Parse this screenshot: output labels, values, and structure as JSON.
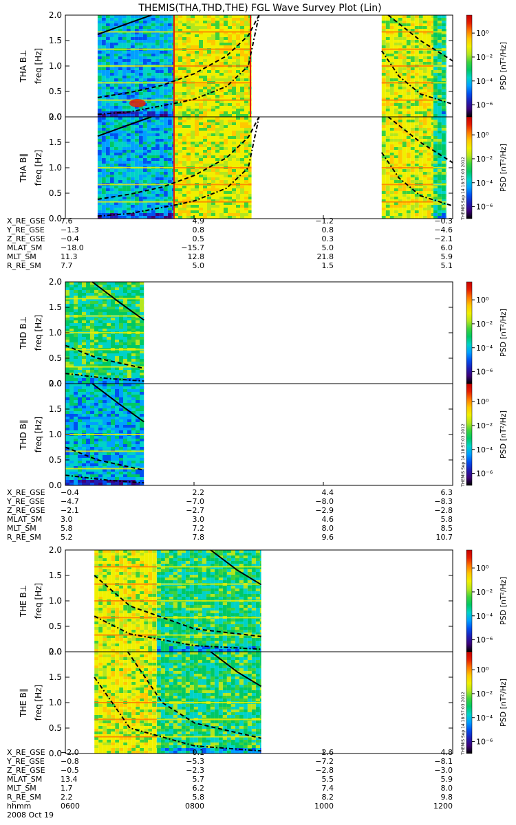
{
  "title": "THEMIS(THA,THD,THE) FGL Wave Survey Plot (Lin)",
  "colors": {
    "colormap": [
      "#ffffff",
      "#000000",
      "#3c0078",
      "#1e1eb4",
      "#0050f0",
      "#00a0ff",
      "#00d2c8",
      "#00c864",
      "#3cd23c",
      "#b4e61e",
      "#f0f000",
      "#ffc800",
      "#ff7800",
      "#e61e00",
      "#c80000"
    ],
    "curve": "#000000"
  },
  "colorbar": {
    "label": "PSD [nT²/Hz]",
    "ticks": [
      "10⁰",
      "10⁻²",
      "10⁻⁴",
      "10⁻⁶"
    ],
    "range_log10": [
      -7,
      1.5
    ]
  },
  "stamp": "THEMIS Sep 14 18:57:03 2012",
  "yticks": [
    "2.0",
    "1.5",
    "1.0",
    "0.5",
    "0.0"
  ],
  "chart_data": [
    {
      "type": "heatmap",
      "ylabel": "freq [Hz]",
      "ylim": [
        0,
        2.0
      ],
      "xlim": [
        "0600",
        "1200"
      ],
      "panels": [
        {
          "name": "THA B⊥",
          "data_segments": [
            [
              "0630",
              "0741",
              "blue"
            ],
            [
              "0741",
              "0853",
              "yellow"
            ],
            [
              "1054",
              "1142",
              "yellow"
            ],
            [
              "1142",
              "1154",
              "green"
            ]
          ],
          "lines": [
            [
              "0741",
              "0741"
            ],
            [
              "0852",
              "0852"
            ]
          ],
          "harmonics": [
            0.33,
            0.67,
            1.0,
            1.33,
            1.67
          ],
          "blob": {
            "t": "0707",
            "f": 0.27
          },
          "curves": [
            {
              "style": "solid",
              "points": [
                [
                  "0630",
                  1.62
                ],
                [
                  "0700",
                  1.85
                ],
                [
                  "0720",
                  2.0
                ]
              ]
            },
            {
              "style": "dashed",
              "points": [
                [
                  "0630",
                  0.38
                ],
                [
                  "0700",
                  0.48
                ],
                [
                  "0730",
                  0.62
                ],
                [
                  "0800",
                  0.85
                ],
                [
                  "0830",
                  1.2
                ],
                [
                  "0850",
                  1.6
                ],
                [
                  "0900",
                  2.0
                ]
              ]
            },
            {
              "style": "dashed",
              "points": [
                [
                  "1100",
                  2.0
                ],
                [
                  "1130",
                  1.5
                ],
                [
                  "1200",
                  1.1
                ]
              ]
            },
            {
              "style": "dashdot",
              "points": [
                [
                  "0630",
                  0.05
                ],
                [
                  "0700",
                  0.1
                ],
                [
                  "0745",
                  0.28
                ],
                [
                  "0800",
                  0.35
                ],
                [
                  "0830",
                  0.6
                ],
                [
                  "0850",
                  1.0
                ],
                [
                  "0900",
                  2.0
                ]
              ]
            },
            {
              "style": "dashdot",
              "points": [
                [
                  "1054",
                  1.3
                ],
                [
                  "1110",
                  0.8
                ],
                [
                  "1130",
                  0.45
                ],
                [
                  "1200",
                  0.25
                ]
              ]
            }
          ]
        },
        {
          "name": "THA B∥",
          "data_segments": [
            [
              "0630",
              "0741",
              "blue"
            ],
            [
              "0741",
              "0853",
              "yellow"
            ],
            [
              "1054",
              "1142",
              "yellow"
            ],
            [
              "1142",
              "1154",
              "green"
            ]
          ],
          "lines": [
            [
              "0741",
              "0741"
            ]
          ],
          "harmonics": [
            0.33,
            0.67,
            1.0
          ],
          "curves": [
            {
              "style": "solid",
              "points": [
                [
                  "0630",
                  1.62
                ],
                [
                  "0700",
                  1.85
                ],
                [
                  "0720",
                  2.0
                ]
              ]
            },
            {
              "style": "dashed",
              "points": [
                [
                  "0630",
                  0.38
                ],
                [
                  "0700",
                  0.48
                ],
                [
                  "0730",
                  0.62
                ],
                [
                  "0800",
                  0.85
                ],
                [
                  "0830",
                  1.2
                ],
                [
                  "0850",
                  1.6
                ],
                [
                  "0900",
                  2.0
                ]
              ]
            },
            {
              "style": "dashed",
              "points": [
                [
                  "1100",
                  2.0
                ],
                [
                  "1130",
                  1.5
                ],
                [
                  "1200",
                  1.1
                ]
              ]
            },
            {
              "style": "dashdot",
              "points": [
                [
                  "0630",
                  0.05
                ],
                [
                  "0700",
                  0.1
                ],
                [
                  "0745",
                  0.28
                ],
                [
                  "0800",
                  0.35
                ],
                [
                  "0830",
                  0.6
                ],
                [
                  "0850",
                  1.0
                ],
                [
                  "0900",
                  2.0
                ]
              ]
            },
            {
              "style": "dashdot",
              "points": [
                [
                  "1054",
                  1.3
                ],
                [
                  "1110",
                  0.8
                ],
                [
                  "1130",
                  0.45
                ],
                [
                  "1200",
                  0.25
                ]
              ]
            }
          ]
        }
      ],
      "ephemeris": {
        "rows": [
          {
            "label": "X_RE_GSE",
            "values": [
              "7.6",
              "4.9",
              "−1.2",
              "−0.3"
            ]
          },
          {
            "label": "Y_RE_GSE",
            "values": [
              "−1.3",
              "0.8",
              "0.8",
              "−4.6"
            ]
          },
          {
            "label": "Z_RE_GSE",
            "values": [
              "−0.4",
              "0.5",
              "0.3",
              "−2.1"
            ]
          },
          {
            "label": "MLAT_SM",
            "values": [
              "−18.0",
              "−15.7",
              "5.0",
              "6.0"
            ]
          },
          {
            "label": "MLT_SM",
            "values": [
              "11.3",
              "12.8",
              "21.8",
              "5.9"
            ]
          },
          {
            "label": "R_RE_SM",
            "values": [
              "7.7",
              "5.0",
              "1.5",
              "5.1"
            ]
          }
        ]
      }
    },
    {
      "type": "heatmap",
      "ylabel": "freq [Hz]",
      "ylim": [
        0,
        2.0
      ],
      "xlim": [
        "0600",
        "1200"
      ],
      "panels": [
        {
          "name": "THD B⊥",
          "data_segments": [
            [
              "0600",
              "0713",
              "green"
            ]
          ],
          "harmonics": [
            0.33,
            0.67,
            1.0,
            1.33,
            1.67
          ],
          "curves": [
            {
              "style": "solid",
              "points": [
                [
                  "0625",
                  2.0
                ],
                [
                  "0650",
                  1.6
                ],
                [
                  "0713",
                  1.25
                ]
              ]
            },
            {
              "style": "dashed",
              "points": [
                [
                  "0600",
                  0.75
                ],
                [
                  "0630",
                  0.5
                ],
                [
                  "0713",
                  0.3
                ]
              ]
            },
            {
              "style": "dashdot",
              "points": [
                [
                  "0600",
                  0.2
                ],
                [
                  "0640",
                  0.1
                ],
                [
                  "0713",
                  0.05
                ]
              ]
            }
          ]
        },
        {
          "name": "THD B∥",
          "data_segments": [
            [
              "0600",
              "0713",
              "blue"
            ]
          ],
          "harmonics": [
            0.33,
            0.67,
            1.0
          ],
          "curves": [
            {
              "style": "solid",
              "points": [
                [
                  "0625",
                  2.0
                ],
                [
                  "0650",
                  1.6
                ],
                [
                  "0713",
                  1.25
                ]
              ]
            },
            {
              "style": "dashed",
              "points": [
                [
                  "0600",
                  0.75
                ],
                [
                  "0630",
                  0.5
                ],
                [
                  "0713",
                  0.3
                ]
              ]
            },
            {
              "style": "dashdot",
              "points": [
                [
                  "0600",
                  0.2
                ],
                [
                  "0640",
                  0.1
                ],
                [
                  "0713",
                  0.05
                ]
              ]
            }
          ]
        }
      ],
      "ephemeris": {
        "rows": [
          {
            "label": "X_RE_GSE",
            "values": [
              "−0.4",
              "2.2",
              "4.4",
              "6.3"
            ]
          },
          {
            "label": "Y_RE_GSE",
            "values": [
              "−4.7",
              "−7.0",
              "−8.0",
              "−8.3"
            ]
          },
          {
            "label": "Z_RE_GSE",
            "values": [
              "−2.1",
              "−2.7",
              "−2.9",
              "−2.8"
            ]
          },
          {
            "label": "MLAT_SM",
            "values": [
              "3.0",
              "3.0",
              "4.6",
              "5.8"
            ]
          },
          {
            "label": "MLT_SM",
            "values": [
              "5.8",
              "7.2",
              "8.0",
              "8.5"
            ]
          },
          {
            "label": "R_RE_SM",
            "values": [
              "5.2",
              "7.8",
              "9.6",
              "10.7"
            ]
          }
        ]
      }
    },
    {
      "type": "heatmap",
      "ylabel": "freq [Hz]",
      "ylim": [
        0,
        2.0
      ],
      "xlim": [
        "0600",
        "1200"
      ],
      "panels": [
        {
          "name": "THE B⊥",
          "data_segments": [
            [
              "0627",
              "0725",
              "yellow"
            ],
            [
              "0725",
              "0902",
              "green"
            ]
          ],
          "harmonics": [
            0.33,
            0.67,
            1.0,
            1.33,
            1.67
          ],
          "curves": [
            {
              "style": "solid",
              "points": [
                [
                  "0815",
                  2.0
                ],
                [
                  "0840",
                  1.6
                ],
                [
                  "0902",
                  1.32
                ]
              ]
            },
            {
              "style": "dashed",
              "points": [
                [
                  "0627",
                  1.5
                ],
                [
                  "0700",
                  0.9
                ],
                [
                  "0800",
                  0.45
                ],
                [
                  "0902",
                  0.3
                ]
              ]
            },
            {
              "style": "dashdot",
              "points": [
                [
                  "0627",
                  0.7
                ],
                [
                  "0700",
                  0.35
                ],
                [
                  "0800",
                  0.12
                ],
                [
                  "0902",
                  0.05
                ]
              ]
            }
          ]
        },
        {
          "name": "THE B∥",
          "data_segments": [
            [
              "0627",
              "0725",
              "yellow"
            ],
            [
              "0725",
              "0902",
              "green"
            ]
          ],
          "harmonics": [
            0.33,
            0.67,
            1.0
          ],
          "curves": [
            {
              "style": "solid",
              "points": [
                [
                  "0815",
                  2.0
                ],
                [
                  "0840",
                  1.6
                ],
                [
                  "0902",
                  1.32
                ]
              ]
            },
            {
              "style": "dashed",
              "points": [
                [
                  "0658",
                  2.0
                ],
                [
                  "0730",
                  1.0
                ],
                [
                  "0800",
                  0.6
                ],
                [
                  "0902",
                  0.3
                ]
              ]
            },
            {
              "style": "dashdot",
              "points": [
                [
                  "0627",
                  1.5
                ],
                [
                  "0700",
                  0.5
                ],
                [
                  "0800",
                  0.15
                ],
                [
                  "0902",
                  0.05
                ]
              ]
            }
          ]
        }
      ],
      "ephemeris": {
        "rows": [
          {
            "label": "X_RE_GSE",
            "values": [
              "−2.0",
              "0.1",
              "2.6",
              "4.8"
            ]
          },
          {
            "label": "Y_RE_GSE",
            "values": [
              "−0.8",
              "−5.3",
              "−7.2",
              "−8.1"
            ]
          },
          {
            "label": "Z_RE_GSE",
            "values": [
              "−0.5",
              "−2.3",
              "−2.8",
              "−3.0"
            ]
          },
          {
            "label": "MLAT_SM",
            "values": [
              "13.4",
              "5.7",
              "5.5",
              "5.9"
            ]
          },
          {
            "label": "MLT_SM",
            "values": [
              "1.7",
              "6.2",
              "7.4",
              "8.0"
            ]
          },
          {
            "label": "R_RE_SM",
            "values": [
              "2.2",
              "5.8",
              "8.2",
              "9.8"
            ]
          },
          {
            "label": "hhmm",
            "values": [
              "0600",
              "0800",
              "1000",
              "1200"
            ]
          }
        ],
        "date": "2008 Oct 19"
      }
    }
  ]
}
